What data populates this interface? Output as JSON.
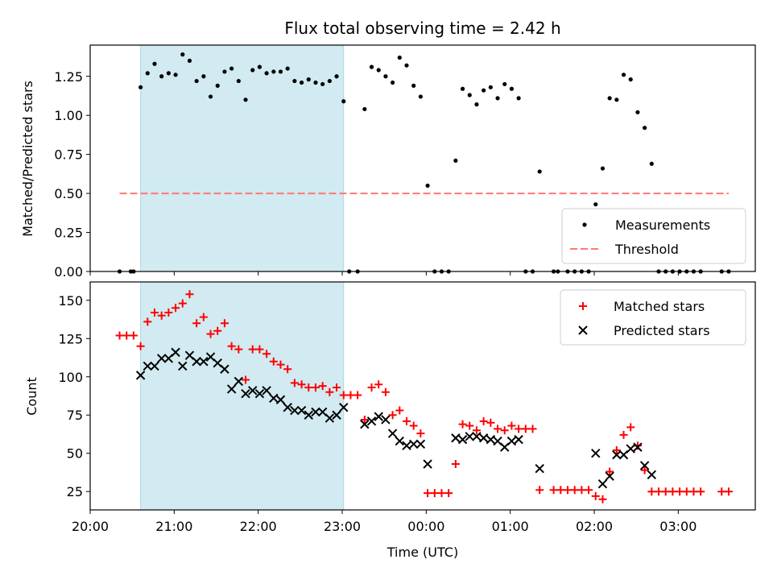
{
  "chart_data": [
    {
      "type": "scatter",
      "title": "Flux total observing time = 2.42 h",
      "xlabel": "",
      "ylabel": "Matched/Predicted stars",
      "xlim": [
        "20:00",
        "03:55"
      ],
      "ylim": [
        0,
        1.45
      ],
      "yticks": [
        0.0,
        0.25,
        0.5,
        0.75,
        1.0,
        1.25
      ],
      "ytick_labels": [
        "0.00",
        "0.25",
        "0.50",
        "0.75",
        "1.00",
        "1.25"
      ],
      "shaded_span": [
        "20:36",
        "23:01"
      ],
      "shaded_color": "#add8e6",
      "legend_position": "lower-right",
      "series": [
        {
          "name": "Measurements",
          "marker": "dot",
          "color": "#000000",
          "points": [
            [
              "20:21",
              0
            ],
            [
              "20:29",
              0
            ],
            [
              "20:31",
              0
            ],
            [
              "20:36",
              1.18
            ],
            [
              "20:41",
              1.27
            ],
            [
              "20:46",
              1.33
            ],
            [
              "20:51",
              1.25
            ],
            [
              "20:56",
              1.27
            ],
            [
              "21:01",
              1.26
            ],
            [
              "21:06",
              1.39
            ],
            [
              "21:11",
              1.35
            ],
            [
              "21:16",
              1.22
            ],
            [
              "21:21",
              1.25
            ],
            [
              "21:26",
              1.12
            ],
            [
              "21:31",
              1.19
            ],
            [
              "21:36",
              1.28
            ],
            [
              "21:41",
              1.3
            ],
            [
              "21:46",
              1.22
            ],
            [
              "21:51",
              1.1
            ],
            [
              "21:56",
              1.29
            ],
            [
              "22:01",
              1.31
            ],
            [
              "22:06",
              1.27
            ],
            [
              "22:11",
              1.28
            ],
            [
              "22:16",
              1.28
            ],
            [
              "22:21",
              1.3
            ],
            [
              "22:26",
              1.22
            ],
            [
              "22:31",
              1.21
            ],
            [
              "22:36",
              1.23
            ],
            [
              "22:41",
              1.21
            ],
            [
              "22:46",
              1.2
            ],
            [
              "22:51",
              1.22
            ],
            [
              "22:56",
              1.25
            ],
            [
              "23:01",
              1.09
            ],
            [
              "23:05",
              0
            ],
            [
              "23:11",
              0
            ],
            [
              "23:16",
              1.04
            ],
            [
              "23:21",
              1.31
            ],
            [
              "23:26",
              1.29
            ],
            [
              "23:31",
              1.25
            ],
            [
              "23:36",
              1.21
            ],
            [
              "23:41",
              1.37
            ],
            [
              "23:46",
              1.32
            ],
            [
              "23:51",
              1.19
            ],
            [
              "23:56",
              1.12
            ],
            [
              "00:01",
              0.55
            ],
            [
              "00:06",
              0
            ],
            [
              "00:11",
              0
            ],
            [
              "00:16",
              0
            ],
            [
              "00:21",
              0.71
            ],
            [
              "00:26",
              1.17
            ],
            [
              "00:31",
              1.13
            ],
            [
              "00:36",
              1.07
            ],
            [
              "00:41",
              1.16
            ],
            [
              "00:46",
              1.18
            ],
            [
              "00:51",
              1.11
            ],
            [
              "00:56",
              1.2
            ],
            [
              "01:01",
              1.17
            ],
            [
              "01:06",
              1.11
            ],
            [
              "01:11",
              0
            ],
            [
              "01:16",
              0
            ],
            [
              "01:21",
              0.64
            ],
            [
              "01:31",
              0
            ],
            [
              "01:34",
              0
            ],
            [
              "01:41",
              0
            ],
            [
              "01:46",
              0
            ],
            [
              "01:51",
              0
            ],
            [
              "01:56",
              0
            ],
            [
              "02:01",
              0.43
            ],
            [
              "02:06",
              0.66
            ],
            [
              "02:11",
              1.11
            ],
            [
              "02:16",
              1.1
            ],
            [
              "02:21",
              1.26
            ],
            [
              "02:26",
              1.23
            ],
            [
              "02:31",
              1.02
            ],
            [
              "02:36",
              0.92
            ],
            [
              "02:41",
              0.69
            ],
            [
              "02:46",
              0
            ],
            [
              "02:51",
              0
            ],
            [
              "02:56",
              0
            ],
            [
              "03:01",
              0
            ],
            [
              "03:06",
              0
            ],
            [
              "03:11",
              0
            ],
            [
              "03:16",
              0
            ],
            [
              "03:31",
              0
            ],
            [
              "03:36",
              0
            ]
          ]
        },
        {
          "name": "Threshold",
          "marker": "dashed-line",
          "color": "#ff7777",
          "points": [
            [
              "20:21",
              0.5
            ],
            [
              "03:36",
              0.5
            ]
          ]
        }
      ]
    },
    {
      "type": "scatter",
      "title": "",
      "xlabel": "Time (UTC)",
      "ylabel": "Count",
      "xlim": [
        "20:00",
        "03:55"
      ],
      "ylim": [
        13,
        162
      ],
      "yticks": [
        25,
        50,
        75,
        100,
        125,
        150
      ],
      "ytick_labels": [
        "25",
        "50",
        "75",
        "100",
        "125",
        "150"
      ],
      "xticks": [
        "20:00",
        "21:00",
        "22:00",
        "23:00",
        "00:00",
        "01:00",
        "02:00",
        "03:00"
      ],
      "xtick_labels": [
        "20:00",
        "21:00",
        "22:00",
        "23:00",
        "00:00",
        "01:00",
        "02:00",
        "03:00"
      ],
      "shaded_span": [
        "20:36",
        "23:01"
      ],
      "shaded_color": "#add8e6",
      "legend_position": "upper-right",
      "series": [
        {
          "name": "Matched stars",
          "marker": "plus",
          "color": "#ff0000",
          "points": [
            [
              "20:21",
              127
            ],
            [
              "20:26",
              127
            ],
            [
              "20:31",
              127
            ],
            [
              "20:36",
              120
            ],
            [
              "20:41",
              136
            ],
            [
              "20:46",
              142
            ],
            [
              "20:51",
              140
            ],
            [
              "20:56",
              142
            ],
            [
              "21:01",
              145
            ],
            [
              "21:06",
              148
            ],
            [
              "21:11",
              154
            ],
            [
              "21:16",
              135
            ],
            [
              "21:21",
              139
            ],
            [
              "21:26",
              128
            ],
            [
              "21:31",
              130
            ],
            [
              "21:36",
              135
            ],
            [
              "21:41",
              120
            ],
            [
              "21:46",
              118
            ],
            [
              "21:51",
              98
            ],
            [
              "21:56",
              118
            ],
            [
              "22:01",
              118
            ],
            [
              "22:06",
              115
            ],
            [
              "22:11",
              110
            ],
            [
              "22:16",
              108
            ],
            [
              "22:21",
              105
            ],
            [
              "22:26",
              96
            ],
            [
              "22:31",
              95
            ],
            [
              "22:36",
              93
            ],
            [
              "22:41",
              93
            ],
            [
              "22:46",
              94
            ],
            [
              "22:51",
              90
            ],
            [
              "22:56",
              93
            ],
            [
              "23:01",
              88
            ],
            [
              "23:06",
              88
            ],
            [
              "23:11",
              88
            ],
            [
              "23:16",
              72
            ],
            [
              "23:21",
              93
            ],
            [
              "23:26",
              95
            ],
            [
              "23:31",
              90
            ],
            [
              "23:36",
              75
            ],
            [
              "23:41",
              78
            ],
            [
              "23:46",
              71
            ],
            [
              "23:51",
              68
            ],
            [
              "23:56",
              63
            ],
            [
              "00:01",
              24
            ],
            [
              "00:06",
              24
            ],
            [
              "00:11",
              24
            ],
            [
              "00:16",
              24
            ],
            [
              "00:21",
              43
            ],
            [
              "00:26",
              69
            ],
            [
              "00:31",
              68
            ],
            [
              "00:36",
              65
            ],
            [
              "00:41",
              71
            ],
            [
              "00:46",
              70
            ],
            [
              "00:51",
              66
            ],
            [
              "00:56",
              65
            ],
            [
              "01:01",
              68
            ],
            [
              "01:06",
              66
            ],
            [
              "01:11",
              66
            ],
            [
              "01:16",
              66
            ],
            [
              "01:21",
              26
            ],
            [
              "01:31",
              26
            ],
            [
              "01:36",
              26
            ],
            [
              "01:41",
              26
            ],
            [
              "01:46",
              26
            ],
            [
              "01:51",
              26
            ],
            [
              "01:56",
              26
            ],
            [
              "02:01",
              22
            ],
            [
              "02:06",
              20
            ],
            [
              "02:11",
              38
            ],
            [
              "02:16",
              52
            ],
            [
              "02:21",
              62
            ],
            [
              "02:26",
              67
            ],
            [
              "02:31",
              55
            ],
            [
              "02:36",
              39
            ],
            [
              "02:41",
              25
            ],
            [
              "02:46",
              25
            ],
            [
              "02:51",
              25
            ],
            [
              "02:56",
              25
            ],
            [
              "03:01",
              25
            ],
            [
              "03:06",
              25
            ],
            [
              "03:11",
              25
            ],
            [
              "03:16",
              25
            ],
            [
              "03:31",
              25
            ],
            [
              "03:36",
              25
            ]
          ]
        },
        {
          "name": "Predicted stars",
          "marker": "x",
          "color": "#000000",
          "points": [
            [
              "20:36",
              101
            ],
            [
              "20:41",
              107
            ],
            [
              "20:46",
              107
            ],
            [
              "20:51",
              112
            ],
            [
              "20:56",
              112
            ],
            [
              "21:01",
              116
            ],
            [
              "21:06",
              107
            ],
            [
              "21:11",
              114
            ],
            [
              "21:16",
              110
            ],
            [
              "21:21",
              110
            ],
            [
              "21:26",
              113
            ],
            [
              "21:31",
              109
            ],
            [
              "21:36",
              105
            ],
            [
              "21:41",
              92
            ],
            [
              "21:46",
              97
            ],
            [
              "21:51",
              89
            ],
            [
              "21:56",
              91
            ],
            [
              "22:01",
              89
            ],
            [
              "22:06",
              91
            ],
            [
              "22:11",
              86
            ],
            [
              "22:16",
              85
            ],
            [
              "22:21",
              80
            ],
            [
              "22:26",
              78
            ],
            [
              "22:31",
              78
            ],
            [
              "22:36",
              75
            ],
            [
              "22:41",
              77
            ],
            [
              "22:46",
              77
            ],
            [
              "22:51",
              73
            ],
            [
              "22:56",
              75
            ],
            [
              "23:01",
              80
            ],
            [
              "23:16",
              69
            ],
            [
              "23:21",
              71
            ],
            [
              "23:26",
              74
            ],
            [
              "23:31",
              72
            ],
            [
              "23:36",
              63
            ],
            [
              "23:41",
              58
            ],
            [
              "23:46",
              55
            ],
            [
              "23:51",
              56
            ],
            [
              "23:56",
              56
            ],
            [
              "00:01",
              43
            ],
            [
              "00:21",
              60
            ],
            [
              "00:26",
              59
            ],
            [
              "00:31",
              61
            ],
            [
              "00:36",
              61
            ],
            [
              "00:41",
              60
            ],
            [
              "00:46",
              59
            ],
            [
              "00:51",
              58
            ],
            [
              "00:56",
              54
            ],
            [
              "01:01",
              58
            ],
            [
              "01:06",
              59
            ],
            [
              "01:21",
              40
            ],
            [
              "02:01",
              50
            ],
            [
              "02:06",
              30
            ],
            [
              "02:11",
              35
            ],
            [
              "02:16",
              49
            ],
            [
              "02:21",
              49
            ],
            [
              "02:26",
              53
            ],
            [
              "02:31",
              54
            ],
            [
              "02:36",
              42
            ],
            [
              "02:41",
              36
            ]
          ]
        }
      ]
    }
  ]
}
